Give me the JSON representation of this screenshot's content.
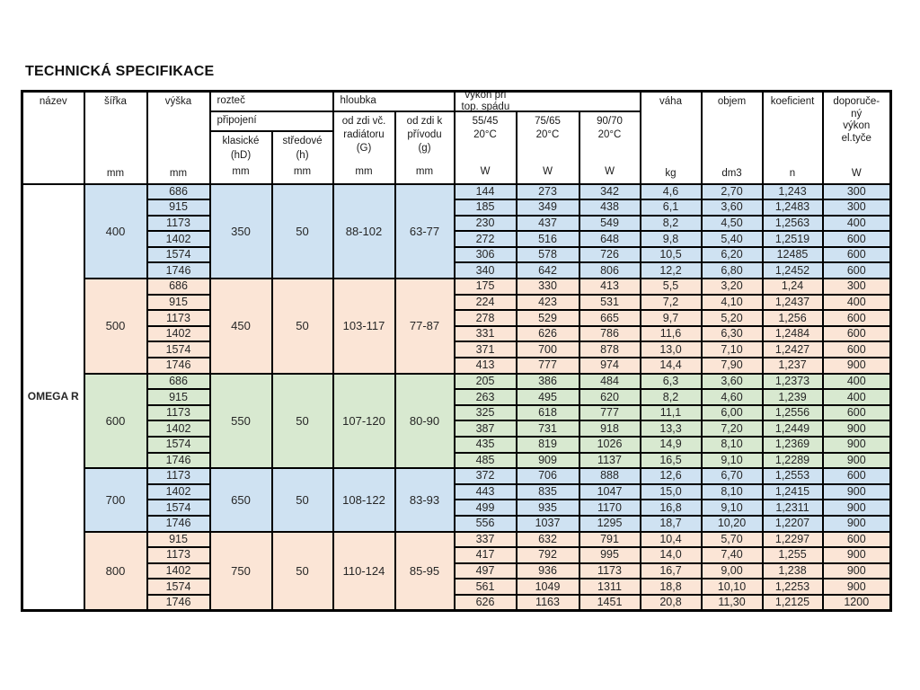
{
  "title": "TECHNICKÁ SPECIFIKACE",
  "product_name": "OMEGA R",
  "units": {
    "mm": "mm",
    "w": "W",
    "kg": "kg",
    "dm3": "dm3",
    "n": "n"
  },
  "header": {
    "nazev": "název",
    "sirka": "šířka",
    "vyska": "výška",
    "roztec": "rozteč",
    "pripojeni": "připojení",
    "klasicke_l1": "klasické",
    "klasicke_l2": "(hD)",
    "stredove_l1": "středové",
    "stredove_l2": "(h)",
    "hloubka": "hloubka",
    "g_l1": "od zdi vč.",
    "g_l2": "radiátoru",
    "g_l3": "(G)",
    "g2_l1": "od zdi k",
    "g2_l2": "přívodu",
    "g2_l3": "(g)",
    "vykon_l1": "výkon při",
    "vykon_l2": "top. spádu",
    "v55": "55/45",
    "v75": "75/65",
    "v90": "90/70",
    "temp": "20°C",
    "vaha": "váha",
    "objem": "objem",
    "koeficient": "koeficient",
    "dop_l1": "doporuče-",
    "dop_l2": "ný",
    "dop_l3": "výkon",
    "dop_l4": "el.tyče"
  },
  "colors": {
    "blue": "#cfe2f2",
    "peach": "#fbe5d6",
    "green": "#d8e9d0"
  },
  "groups": [
    {
      "sirka": "400",
      "color": "#cfe2f2",
      "klasicke": "350",
      "stredove": "50",
      "hloubka_g": "88-102",
      "hloubka_g2": "63-77",
      "rows": [
        [
          "686",
          "144",
          "273",
          "342",
          "4,6",
          "2,70",
          "1,243",
          "300"
        ],
        [
          "915",
          "185",
          "349",
          "438",
          "6,1",
          "3,60",
          "1,2483",
          "300"
        ],
        [
          "1173",
          "230",
          "437",
          "549",
          "8,2",
          "4,50",
          "1,2563",
          "400"
        ],
        [
          "1402",
          "272",
          "516",
          "648",
          "9,8",
          "5,40",
          "1,2519",
          "600"
        ],
        [
          "1574",
          "306",
          "578",
          "726",
          "10,5",
          "6,20",
          "12485",
          "600"
        ],
        [
          "1746",
          "340",
          "642",
          "806",
          "12,2",
          "6,80",
          "1,2452",
          "600"
        ]
      ]
    },
    {
      "sirka": "500",
      "color": "#fbe5d6",
      "klasicke": "450",
      "stredove": "50",
      "hloubka_g": "103-117",
      "hloubka_g2": "77-87",
      "rows": [
        [
          "686",
          "175",
          "330",
          "413",
          "5,5",
          "3,20",
          "1,24",
          "300"
        ],
        [
          "915",
          "224",
          "423",
          "531",
          "7,2",
          "4,10",
          "1,2437",
          "400"
        ],
        [
          "1173",
          "278",
          "529",
          "665",
          "9,7",
          "5,20",
          "1,256",
          "600"
        ],
        [
          "1402",
          "331",
          "626",
          "786",
          "11,6",
          "6,30",
          "1,2484",
          "600"
        ],
        [
          "1574",
          "371",
          "700",
          "878",
          "13,0",
          "7,10",
          "1,2427",
          "600"
        ],
        [
          "1746",
          "413",
          "777",
          "974",
          "14,4",
          "7,90",
          "1,237",
          "900"
        ]
      ]
    },
    {
      "sirka": "600",
      "color": "#d8e9d0",
      "klasicke": "550",
      "stredove": "50",
      "hloubka_g": "107-120",
      "hloubka_g2": "80-90",
      "rows": [
        [
          "686",
          "205",
          "386",
          "484",
          "6,3",
          "3,60",
          "1,2373",
          "400"
        ],
        [
          "915",
          "263",
          "495",
          "620",
          "8,2",
          "4,60",
          "1,239",
          "400"
        ],
        [
          "1173",
          "325",
          "618",
          "777",
          "11,1",
          "6,00",
          "1,2556",
          "600"
        ],
        [
          "1402",
          "387",
          "731",
          "918",
          "13,3",
          "7,20",
          "1,2449",
          "900"
        ],
        [
          "1574",
          "435",
          "819",
          "1026",
          "14,9",
          "8,10",
          "1,2369",
          "900"
        ],
        [
          "1746",
          "485",
          "909",
          "1137",
          "16,5",
          "9,10",
          "1,2289",
          "900"
        ]
      ]
    },
    {
      "sirka": "700",
      "color": "#cfe2f2",
      "klasicke": "650",
      "stredove": "50",
      "hloubka_g": "108-122",
      "hloubka_g2": "83-93",
      "rows": [
        [
          "1173",
          "372",
          "706",
          "888",
          "12,6",
          "6,70",
          "1,2553",
          "600"
        ],
        [
          "1402",
          "443",
          "835",
          "1047",
          "15,0",
          "8,10",
          "1,2415",
          "900"
        ],
        [
          "1574",
          "499",
          "935",
          "1170",
          "16,8",
          "9,10",
          "1,2311",
          "900"
        ],
        [
          "1746",
          "556",
          "1037",
          "1295",
          "18,7",
          "10,20",
          "1,2207",
          "900"
        ]
      ]
    },
    {
      "sirka": "800",
      "color": "#fbe5d6",
      "klasicke": "750",
      "stredove": "50",
      "hloubka_g": "110-124",
      "hloubka_g2": "85-95",
      "rows": [
        [
          "915",
          "337",
          "632",
          "791",
          "10,4",
          "5,70",
          "1,2297",
          "600"
        ],
        [
          "1173",
          "417",
          "792",
          "995",
          "14,0",
          "7,40",
          "1,255",
          "900"
        ],
        [
          "1402",
          "497",
          "936",
          "1173",
          "16,7",
          "9,00",
          "1,238",
          "900"
        ],
        [
          "1574",
          "561",
          "1049",
          "1311",
          "18,8",
          "10,10",
          "1,2253",
          "900"
        ],
        [
          "1746",
          "626",
          "1163",
          "1451",
          "20,8",
          "11,30",
          "1,2125",
          "1200"
        ]
      ]
    }
  ]
}
